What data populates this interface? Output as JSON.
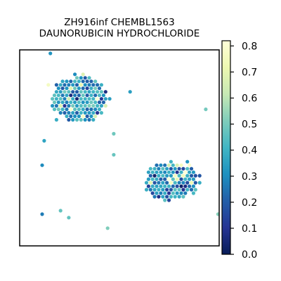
{
  "title_line1": "ZH916inf CHEMBL1563",
  "title_line2": "DAUNORUBICIN HYDROCHLORIDE",
  "chart_data": {
    "type": "scatter",
    "description": "Spatial hexbin-like scatter of spots colored by score",
    "colormap": "YlGnBu_r",
    "colorbar": {
      "min": 0.0,
      "max": 0.82,
      "ticks": [
        0.0,
        0.1,
        0.2,
        0.3,
        0.4,
        0.5,
        0.6,
        0.7,
        0.8
      ],
      "tick_labels": [
        "0.0",
        "0.1",
        "0.2",
        "0.3",
        "0.4",
        "0.5",
        "0.6",
        "0.7",
        "0.8"
      ]
    },
    "xlabel": "",
    "ylabel": "",
    "grid": false,
    "xlim": [
      0,
      100
    ],
    "ylim": [
      0,
      100
    ],
    "clusters": [
      {
        "name": "",
        "shape": "upper-left lobe",
        "center": [
          30,
          25
        ],
        "spread": [
          14,
          12
        ],
        "mean_value": 0.35
      },
      {
        "name": "",
        "shape": "lower-right lobe",
        "center": [
          76,
          67
        ],
        "spread": [
          14,
          10
        ],
        "mean_value": 0.3
      }
    ]
  },
  "colors": {
    "cmap_stops": [
      "#081d58",
      "#253494",
      "#225ea8",
      "#1d91c0",
      "#41b6c4",
      "#7fcdbb",
      "#c7e9b4",
      "#edf8b1",
      "#ffffd9"
    ]
  }
}
